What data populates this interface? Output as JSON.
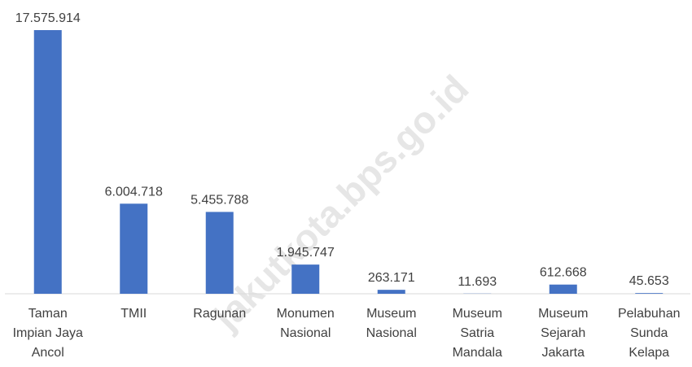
{
  "chart_data": {
    "type": "bar",
    "categories": [
      "Taman Impian Jaya Ancol",
      "TMII",
      "Ragunan",
      "Monumen Nasional",
      "Museum Nasional",
      "Museum Satria Mandala",
      "Museum Sejarah Jakarta",
      "Pelabuhan Sunda Kelapa"
    ],
    "values": [
      17575914,
      6004718,
      5455788,
      1945747,
      263171,
      11693,
      612668,
      45653
    ],
    "value_labels": [
      "17.575.914",
      "6.004.718",
      "5.455.788",
      "1.945.747",
      "263.171",
      "11.693",
      "612.668",
      "45.653"
    ],
    "color": "#4472c4",
    "watermark": "jakutkota.bps.go.id"
  }
}
